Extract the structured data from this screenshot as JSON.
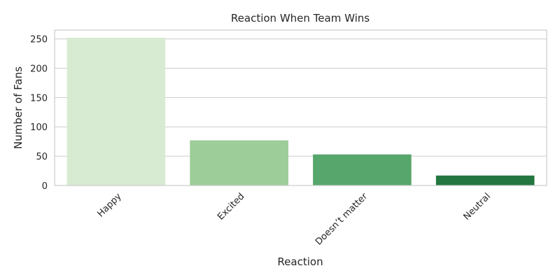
{
  "chart_data": {
    "type": "bar",
    "title": "Reaction When Team Wins",
    "xlabel": "Reaction",
    "ylabel": "Number of Fans",
    "categories": [
      "Happy",
      "Excited",
      "Doesn’t matter",
      "Neutral"
    ],
    "values": [
      252,
      77,
      53,
      17
    ],
    "colors": [
      "#d7ebd2",
      "#9dcd98",
      "#57a66b",
      "#23763f"
    ],
    "ylim": [
      0,
      265
    ],
    "yticks": [
      "0",
      "50",
      "100",
      "150",
      "200",
      "250"
    ],
    "grid": "horizontal",
    "legend": "none"
  }
}
